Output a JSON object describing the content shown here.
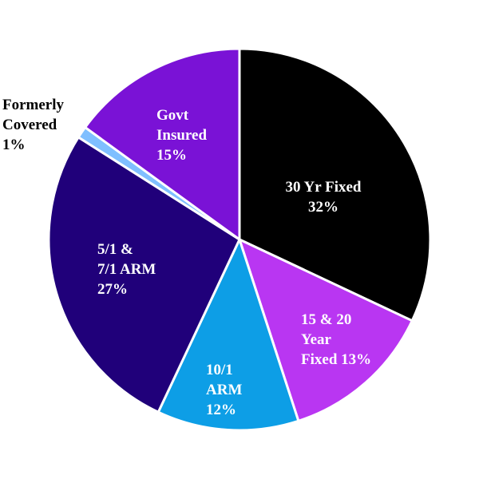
{
  "chart_data": {
    "type": "pie",
    "title": "",
    "slices": [
      {
        "name": "30 Yr Fixed",
        "value": 32,
        "label_lines": [
          "30 Yr Fixed",
          "32%"
        ],
        "color": "#000000",
        "text_color": "#ffffff"
      },
      {
        "name": "15 & 20 Year Fixed",
        "value": 13,
        "label_lines": [
          "15 & 20",
          "Year",
          "Fixed 13%"
        ],
        "color": "#b936f2",
        "text_color": "#ffffff"
      },
      {
        "name": "10/1 ARM",
        "value": 12,
        "label_lines": [
          "10/1",
          "ARM",
          "12%"
        ],
        "color": "#0d9ee6",
        "text_color": "#ffffff"
      },
      {
        "name": "5/1 & 7/1 ARM",
        "value": 27,
        "label_lines": [
          "5/1 &",
          "7/1 ARM",
          "27%"
        ],
        "color": "#20007a",
        "text_color": "#ffffff"
      },
      {
        "name": "Formerly Covered",
        "value": 1,
        "label_lines": [
          "Formerly",
          "Covered",
          "1%"
        ],
        "color": "#7fbfff",
        "text_color": "#000000"
      },
      {
        "name": "Govt Insured",
        "value": 15,
        "label_lines": [
          "Govt",
          "Insured",
          "15%"
        ],
        "color": "#7a12d6",
        "text_color": "#ffffff"
      }
    ],
    "start": "12 o'clock",
    "direction": "clockwise",
    "legend": "none",
    "slice_border_color": "#ffffff"
  }
}
